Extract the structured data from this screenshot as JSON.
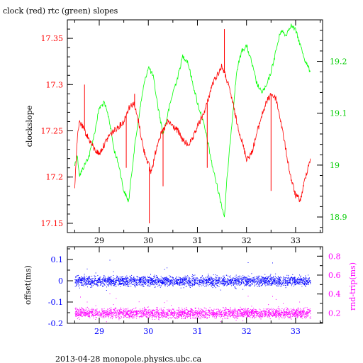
{
  "title": "clock (red) rtc (green) slopes",
  "footer": "2013-04-28  monopole.physics.ubc.ca",
  "chart_data": [
    {
      "type": "line",
      "title": "clock (red) rtc (green) slopes",
      "xlabel": "",
      "xlim": [
        28.35,
        33.55
      ],
      "x_ticks": [
        29,
        30,
        31,
        32,
        33
      ],
      "grid": false,
      "left_axis": {
        "label": "clockslope",
        "lim": [
          17.14,
          17.37
        ],
        "ticks": [
          17.15,
          17.2,
          17.25,
          17.3,
          17.35
        ],
        "tick_labels": [
          "17.15",
          "17.2",
          "17.25",
          "17.3",
          "17.35"
        ]
      },
      "right_axis": {
        "label": "",
        "lim": [
          18.87,
          19.28
        ],
        "ticks": [
          18.9,
          19.0,
          19.1,
          19.2
        ],
        "tick_labels": [
          "18.9",
          "19",
          "19.1",
          "19.2"
        ]
      },
      "series": [
        {
          "name": "clock",
          "axis": "left",
          "color": "#ff0000",
          "x": [
            28.5,
            28.55,
            28.6,
            28.7,
            28.8,
            28.9,
            29.0,
            29.1,
            29.2,
            29.3,
            29.4,
            29.5,
            29.6,
            29.7,
            29.8,
            29.9,
            30.0,
            30.05,
            30.1,
            30.2,
            30.3,
            30.4,
            30.5,
            30.6,
            30.7,
            30.8,
            30.9,
            31.0,
            31.1,
            31.2,
            31.3,
            31.4,
            31.5,
            31.6,
            31.7,
            31.8,
            31.9,
            32.0,
            32.1,
            32.2,
            32.3,
            32.4,
            32.5,
            32.6,
            32.7,
            32.8,
            32.9,
            33.0,
            33.1,
            33.2,
            33.3
          ],
          "y": [
            17.19,
            17.24,
            17.26,
            17.25,
            17.24,
            17.23,
            17.225,
            17.235,
            17.245,
            17.25,
            17.255,
            17.26,
            17.275,
            17.28,
            17.26,
            17.23,
            17.215,
            17.205,
            17.215,
            17.24,
            17.25,
            17.26,
            17.255,
            17.25,
            17.24,
            17.235,
            17.24,
            17.255,
            17.265,
            17.28,
            17.3,
            17.31,
            17.32,
            17.305,
            17.285,
            17.26,
            17.24,
            17.22,
            17.225,
            17.245,
            17.265,
            17.28,
            17.29,
            17.285,
            17.26,
            17.23,
            17.2,
            17.18,
            17.175,
            17.2,
            17.22
          ],
          "spikes": [
            {
              "x": 29.55,
              "y": 17.21
            },
            {
              "x": 29.72,
              "y": 17.29
            },
            {
              "x": 30.02,
              "y": 17.15
            },
            {
              "x": 30.3,
              "y": 17.19
            },
            {
              "x": 31.2,
              "y": 17.21
            },
            {
              "x": 31.55,
              "y": 17.36
            },
            {
              "x": 31.62,
              "y": 17.3
            },
            {
              "x": 32.5,
              "y": 17.185
            },
            {
              "x": 28.7,
              "y": 17.3
            }
          ]
        },
        {
          "name": "rtc",
          "axis": "right",
          "color": "#00ff00",
          "x": [
            28.5,
            28.55,
            28.6,
            28.7,
            28.8,
            28.9,
            29.0,
            29.1,
            29.2,
            29.3,
            29.4,
            29.5,
            29.6,
            29.7,
            29.8,
            29.9,
            30.0,
            30.1,
            30.2,
            30.3,
            30.4,
            30.5,
            30.6,
            30.7,
            30.8,
            30.9,
            31.0,
            31.1,
            31.2,
            31.3,
            31.4,
            31.5,
            31.55,
            31.6,
            31.7,
            31.8,
            31.9,
            32.0,
            32.1,
            32.2,
            32.3,
            32.4,
            32.5,
            32.6,
            32.7,
            32.8,
            32.9,
            33.0,
            33.1,
            33.2,
            33.3
          ],
          "y": [
            19.0,
            19.02,
            18.98,
            19.0,
            19.02,
            19.06,
            19.11,
            19.12,
            19.09,
            19.03,
            19.0,
            18.95,
            18.93,
            19.02,
            19.09,
            19.15,
            19.19,
            19.17,
            19.11,
            19.06,
            19.1,
            19.14,
            19.17,
            19.21,
            19.2,
            19.16,
            19.12,
            19.09,
            19.05,
            19.0,
            18.96,
            18.92,
            18.9,
            18.97,
            19.08,
            19.18,
            19.22,
            19.23,
            19.2,
            19.16,
            19.14,
            19.15,
            19.18,
            19.22,
            19.26,
            19.25,
            19.27,
            19.26,
            19.23,
            19.2,
            19.18
          ]
        }
      ]
    },
    {
      "type": "scatter",
      "xlim": [
        28.35,
        33.55
      ],
      "x_ticks": [
        29,
        30,
        31,
        32,
        33
      ],
      "grid": false,
      "left_axis": {
        "label": "offset(ms)",
        "lim": [
          -0.2,
          0.16
        ],
        "ticks": [
          -0.2,
          -0.1,
          0,
          0.1
        ],
        "tick_labels": [
          "-0.2",
          "-0.1",
          "0",
          "0.1"
        ]
      },
      "right_axis": {
        "label": "rnd-trip(ms)",
        "lim": [
          0.09,
          0.9
        ],
        "ticks": [
          0.2,
          0.4,
          0.6,
          0.8
        ],
        "tick_labels": [
          "0.2",
          "0.4",
          "0.6",
          "0.8"
        ]
      },
      "series": [
        {
          "name": "offset",
          "axis": "left",
          "color": "#0000ff",
          "x_range": [
            28.5,
            33.3
          ],
          "center": 0.0,
          "spread": 0.012
        },
        {
          "name": "rnd-trip",
          "axis": "right",
          "color": "#ff00ff",
          "x_range": [
            28.5,
            33.3
          ],
          "center": 0.2,
          "spread": 0.025
        }
      ]
    }
  ]
}
